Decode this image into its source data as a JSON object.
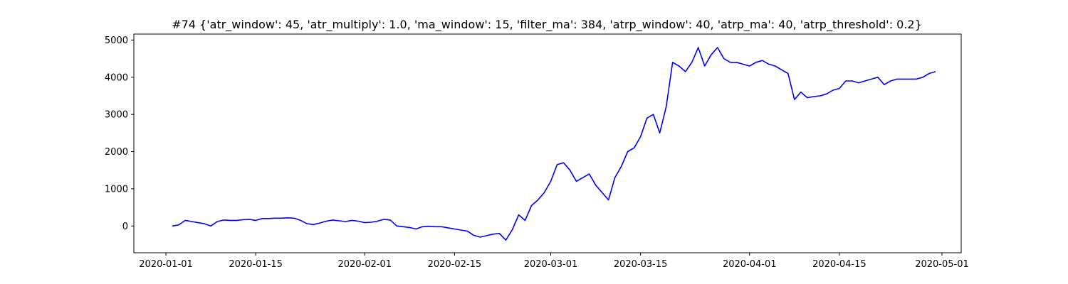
{
  "chart_data": {
    "type": "line",
    "title": "#74 {'atr_window': 45, 'atr_multiply': 1.0, 'ma_window': 15, 'filter_ma': 384, 'atrp_window': 40, 'atrp_ma': 40, 'atrp_threshold': 0.2}",
    "xlabel": "",
    "ylabel": "",
    "grid": false,
    "xlim": [
      "2019-12-27",
      "2020-05-04"
    ],
    "ylim": [
      -720,
      5160
    ],
    "x_ticks": [
      "2020-01-01",
      "2020-01-15",
      "2020-02-01",
      "2020-02-15",
      "2020-03-01",
      "2020-03-15",
      "2020-04-01",
      "2020-04-15",
      "2020-05-01"
    ],
    "y_ticks": [
      0,
      1000,
      2000,
      3000,
      4000,
      5000
    ],
    "series": [
      {
        "color": "#0000ff",
        "x": [
          "2020-01-02",
          "2020-01-03",
          "2020-01-04",
          "2020-01-05",
          "2020-01-06",
          "2020-01-07",
          "2020-01-08",
          "2020-01-09",
          "2020-01-10",
          "2020-01-11",
          "2020-01-12",
          "2020-01-13",
          "2020-01-14",
          "2020-01-15",
          "2020-01-16",
          "2020-01-17",
          "2020-01-18",
          "2020-01-19",
          "2020-01-20",
          "2020-01-21",
          "2020-01-22",
          "2020-01-23",
          "2020-01-24",
          "2020-01-25",
          "2020-01-26",
          "2020-01-27",
          "2020-01-28",
          "2020-01-29",
          "2020-01-30",
          "2020-01-31",
          "2020-02-01",
          "2020-02-02",
          "2020-02-03",
          "2020-02-04",
          "2020-02-05",
          "2020-02-06",
          "2020-02-07",
          "2020-02-08",
          "2020-02-09",
          "2020-02-10",
          "2020-02-11",
          "2020-02-12",
          "2020-02-13",
          "2020-02-14",
          "2020-02-15",
          "2020-02-16",
          "2020-02-17",
          "2020-02-18",
          "2020-02-19",
          "2020-02-20",
          "2020-02-21",
          "2020-02-22",
          "2020-02-23",
          "2020-02-24",
          "2020-02-25",
          "2020-02-26",
          "2020-02-27",
          "2020-02-28",
          "2020-02-29",
          "2020-03-01",
          "2020-03-02",
          "2020-03-03",
          "2020-03-04",
          "2020-03-05",
          "2020-03-06",
          "2020-03-07",
          "2020-03-08",
          "2020-03-09",
          "2020-03-10",
          "2020-03-11",
          "2020-03-12",
          "2020-03-13",
          "2020-03-14",
          "2020-03-15",
          "2020-03-16",
          "2020-03-17",
          "2020-03-18",
          "2020-03-19",
          "2020-03-20",
          "2020-03-21",
          "2020-03-22",
          "2020-03-23",
          "2020-03-24",
          "2020-03-25",
          "2020-03-26",
          "2020-03-27",
          "2020-03-28",
          "2020-03-29",
          "2020-03-30",
          "2020-03-31",
          "2020-04-01",
          "2020-04-02",
          "2020-04-03",
          "2020-04-04",
          "2020-04-05",
          "2020-04-06",
          "2020-04-07",
          "2020-04-08",
          "2020-04-09",
          "2020-04-10",
          "2020-04-11",
          "2020-04-12",
          "2020-04-13",
          "2020-04-14",
          "2020-04-15",
          "2020-04-16",
          "2020-04-17",
          "2020-04-18",
          "2020-04-19",
          "2020-04-20",
          "2020-04-21",
          "2020-04-22",
          "2020-04-23",
          "2020-04-24",
          "2020-04-25",
          "2020-04-26",
          "2020-04-27",
          "2020-04-28",
          "2020-04-29",
          "2020-04-30"
        ],
        "y": [
          0,
          30,
          150,
          120,
          90,
          60,
          0,
          120,
          160,
          150,
          150,
          170,
          180,
          150,
          200,
          200,
          210,
          210,
          220,
          210,
          150,
          60,
          40,
          80,
          130,
          160,
          140,
          120,
          150,
          130,
          90,
          100,
          130,
          180,
          160,
          0,
          -20,
          -40,
          -80,
          -20,
          -10,
          -20,
          -20,
          -50,
          -80,
          -110,
          -140,
          -250,
          -300,
          -260,
          -220,
          -200,
          -380,
          -100,
          300,
          150,
          550,
          700,
          900,
          1200,
          1650,
          1700,
          1500,
          1200,
          1300,
          1400,
          1100,
          900,
          700,
          1300,
          1600,
          2000,
          2100,
          2400,
          2900,
          3000,
          2500,
          3200,
          4400,
          4300,
          4150,
          4400,
          4800,
          4300,
          4600,
          4800,
          4500,
          4400,
          4400,
          4350,
          4300,
          4400,
          4450,
          4350,
          4300,
          4200,
          4100,
          3400,
          3600,
          3450,
          3480,
          3500,
          3550,
          3650,
          3700,
          3900,
          3900,
          3850,
          3900,
          3950,
          4000,
          3800,
          3900,
          3950,
          3950,
          3950,
          3950,
          4000,
          4100,
          4150
        ]
      }
    ]
  }
}
